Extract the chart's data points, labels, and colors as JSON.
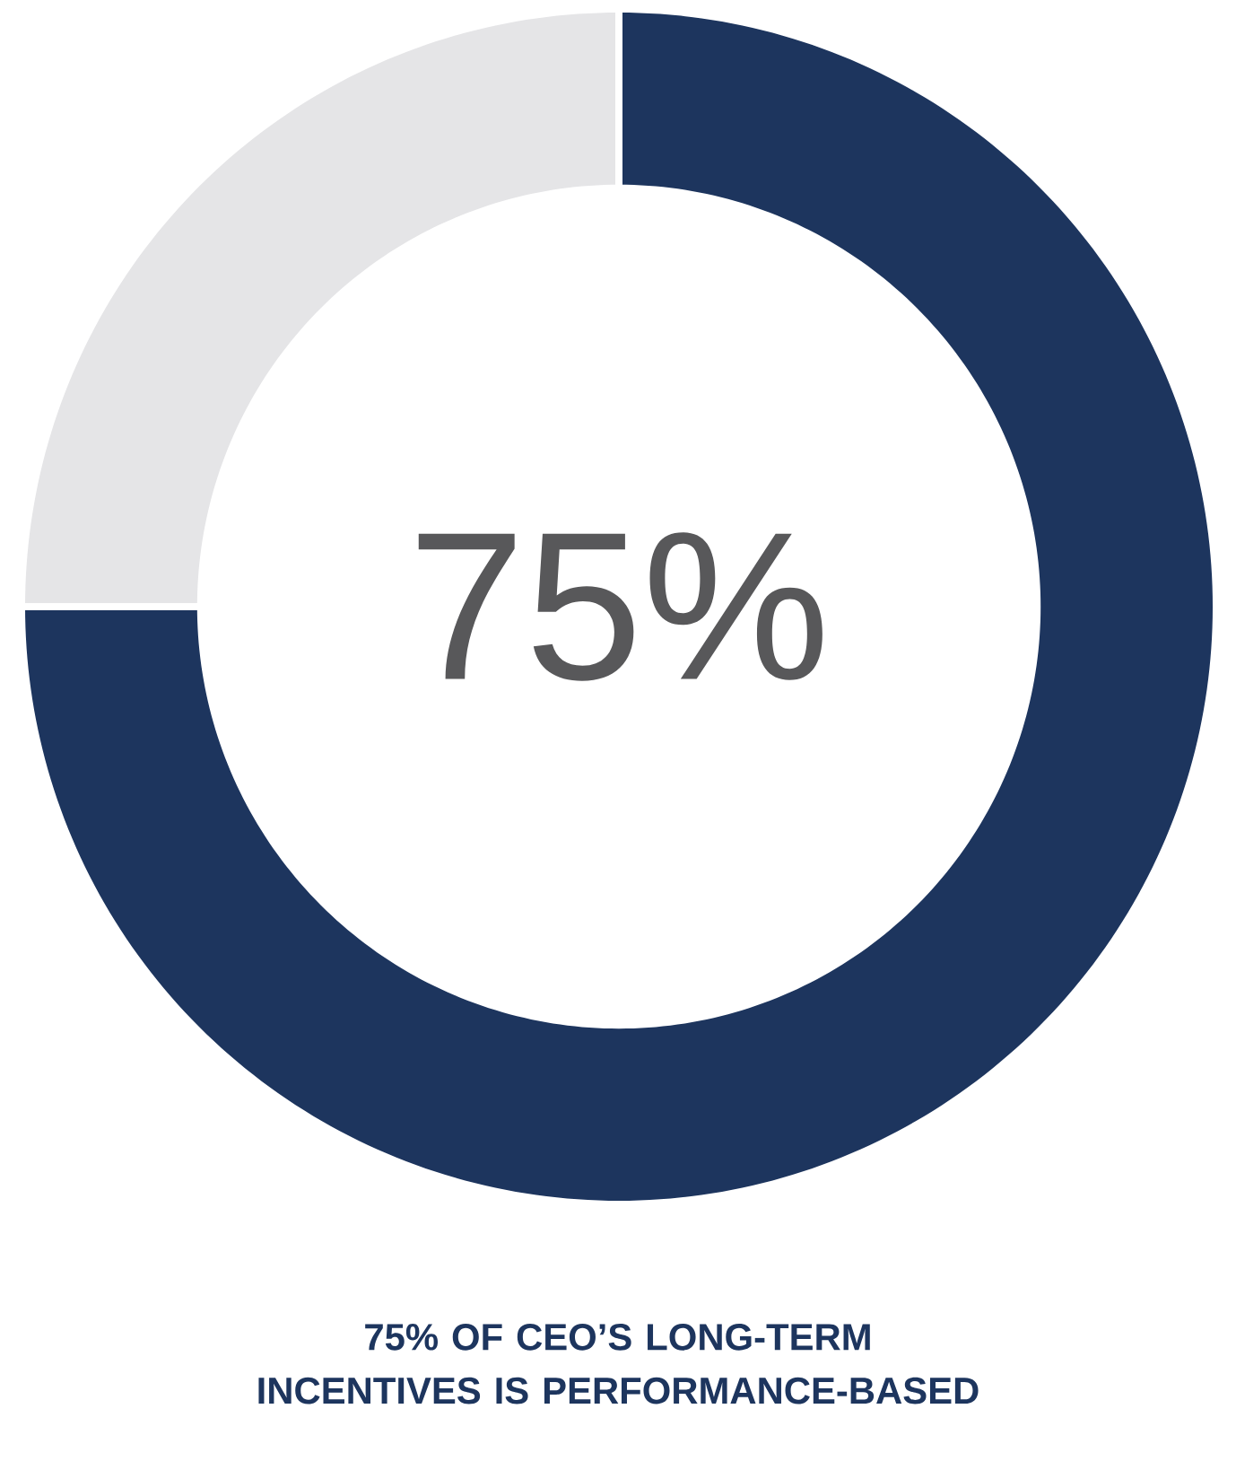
{
  "chart_data": {
    "type": "donut",
    "title": "75% OF CEO’S LONG-TERM INCENTIVES IS PERFORMANCE-BASED",
    "categories": [
      null,
      null
    ],
    "values": [
      75,
      25
    ],
    "colors": [
      "#1d355e",
      "#e5e5e7"
    ],
    "annotations": [
      "75%"
    ]
  }
}
